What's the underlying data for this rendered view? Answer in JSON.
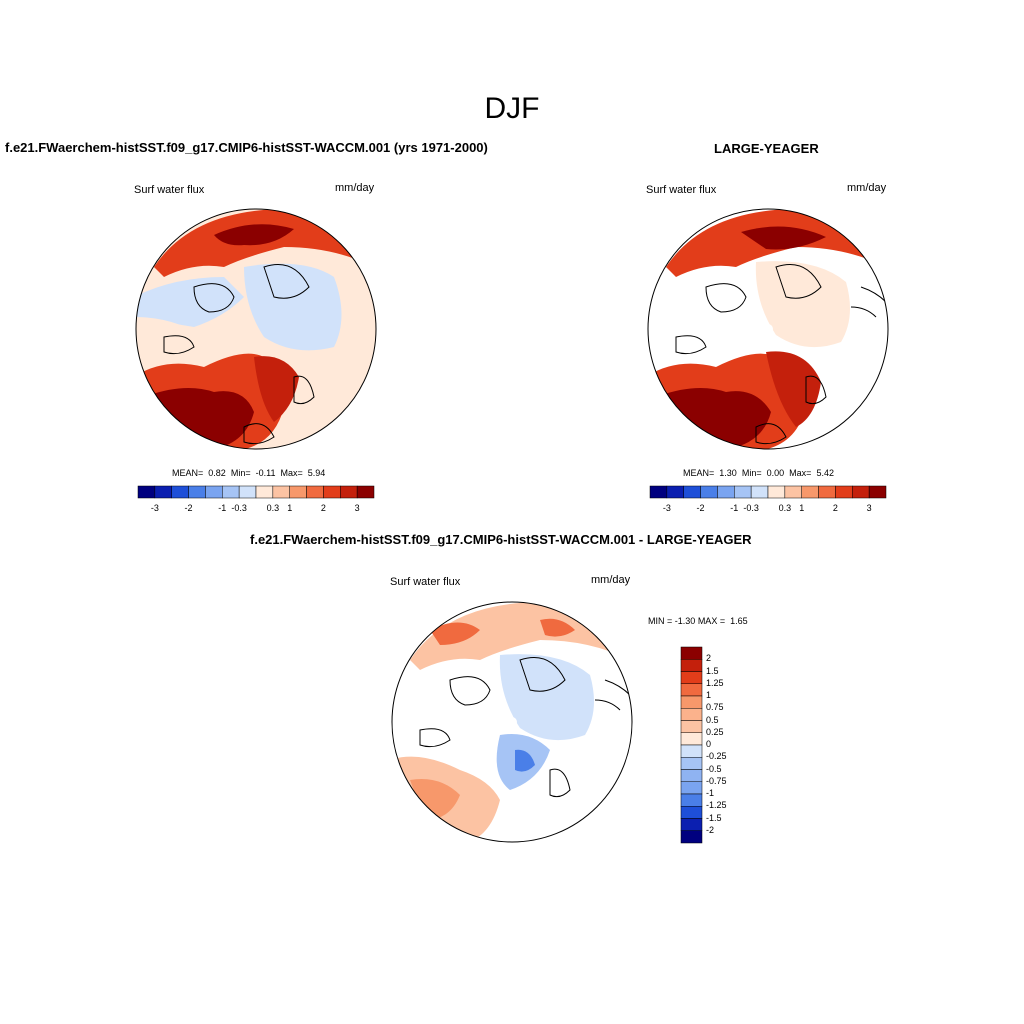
{
  "figure": {
    "title": "DJF"
  },
  "panels": {
    "model": {
      "title": "f.e21.FWaerchem-histSST.f09_g17.CMIP6-histSST-WACCM.001 (yrs 1971-2000)",
      "variable": "Surf water flux",
      "units": "mm/day",
      "stats": {
        "mean_label": "MEAN=",
        "mean": "0.82",
        "min_label": "Min=",
        "min": "-0.11",
        "max_label": "Max=",
        "max": "5.94"
      }
    },
    "obs": {
      "title": "LARGE-YEAGER",
      "variable": "Surf water flux",
      "units": "mm/day",
      "stats": {
        "mean_label": "MEAN=",
        "mean": "1.30",
        "min_label": "Min=",
        "min": "0.00",
        "max_label": "Max=",
        "max": "5.42"
      }
    },
    "diff": {
      "title": "f.e21.FWaerchem-histSST.f09_g17.CMIP6-histSST-WACCM.001 - LARGE-YEAGER",
      "variable": "Surf water flux",
      "units": "mm/day",
      "stats": {
        "min_label": "MIN =",
        "min": "-1.30",
        "max_label": "MAX =",
        "max": "1.65"
      }
    }
  },
  "chart_data": [
    {
      "type": "heatmap",
      "projection": "north-polar-stereographic",
      "title": "f.e21.FWaerchem-histSST.f09_g17.CMIP6-histSST-WACCM.001 (yrs 1971-2000)",
      "variable": "Surf water flux",
      "units": "mm/day",
      "mean": 0.82,
      "min": -0.11,
      "max": 5.94,
      "colorbar": {
        "orientation": "horizontal",
        "tick_labels": [
          "-3",
          "-2",
          "-1",
          "-0.3",
          "0.3",
          "1",
          "2",
          "3"
        ],
        "colors": [
          "#00007f",
          "#0b1fb0",
          "#1e4fd8",
          "#4a7fe8",
          "#7aa4f0",
          "#a6c4f5",
          "#d1e2fa",
          "#ffe9d9",
          "#fcc3a3",
          "#f7986b",
          "#f06a3f",
          "#e23d1a",
          "#c4200c",
          "#8b0000"
        ]
      },
      "regions": [
        {
          "area": "north-atlantic",
          "level": "3+"
        },
        {
          "area": "north-pacific",
          "level": "2-3"
        },
        {
          "area": "arctic-ocean",
          "level": "0-0.3"
        },
        {
          "area": "continents",
          "level": "-0.3-0"
        }
      ]
    },
    {
      "type": "heatmap",
      "projection": "north-polar-stereographic",
      "title": "LARGE-YEAGER",
      "variable": "Surf water flux",
      "units": "mm/day",
      "mean": 1.3,
      "min": 0.0,
      "max": 5.42,
      "colorbar": {
        "orientation": "horizontal",
        "tick_labels": [
          "-3",
          "-2",
          "-1",
          "-0.3",
          "0.3",
          "1",
          "2",
          "3"
        ],
        "colors": [
          "#00007f",
          "#0b1fb0",
          "#1e4fd8",
          "#4a7fe8",
          "#7aa4f0",
          "#a6c4f5",
          "#d1e2fa",
          "#ffe9d9",
          "#fcc3a3",
          "#f7986b",
          "#f06a3f",
          "#e23d1a",
          "#c4200c",
          "#8b0000"
        ]
      },
      "regions": [
        {
          "area": "north-atlantic",
          "level": "3+"
        },
        {
          "area": "north-pacific",
          "level": "2-3"
        },
        {
          "area": "arctic-ocean",
          "level": "0-0.3"
        },
        {
          "area": "continents",
          "level": "missing"
        }
      ]
    },
    {
      "type": "heatmap",
      "projection": "north-polar-stereographic",
      "title": "f.e21.FWaerchem-histSST.f09_g17.CMIP6-histSST-WACCM.001 - LARGE-YEAGER",
      "variable": "Surf water flux",
      "units": "mm/day",
      "min": -1.3,
      "max": 1.65,
      "colorbar": {
        "orientation": "vertical",
        "tick_labels": [
          "2",
          "1.5",
          "1.25",
          "1",
          "0.75",
          "0.5",
          "0.25",
          "0",
          "-0.25",
          "-0.5",
          "-0.75",
          "-1",
          "-1.25",
          "-1.5",
          "-2"
        ],
        "colors": [
          "#8b0000",
          "#c4200c",
          "#e23d1a",
          "#f06a3f",
          "#f7986b",
          "#fbb28c",
          "#fcc3a3",
          "#ffe9d9",
          "#d1e2fa",
          "#a6c4f5",
          "#8fb3f2",
          "#7aa4f0",
          "#4a7fe8",
          "#1e4fd8",
          "#0b1fb0",
          "#00007f"
        ]
      },
      "regions": [
        {
          "area": "north-atlantic",
          "level": "0.5-1.5"
        },
        {
          "area": "north-pacific",
          "level": "0.25-1"
        },
        {
          "area": "arctic-ocean",
          "level": "-0.25-0"
        },
        {
          "area": "barents-sea",
          "level": "-1 to -0.5"
        }
      ]
    }
  ]
}
